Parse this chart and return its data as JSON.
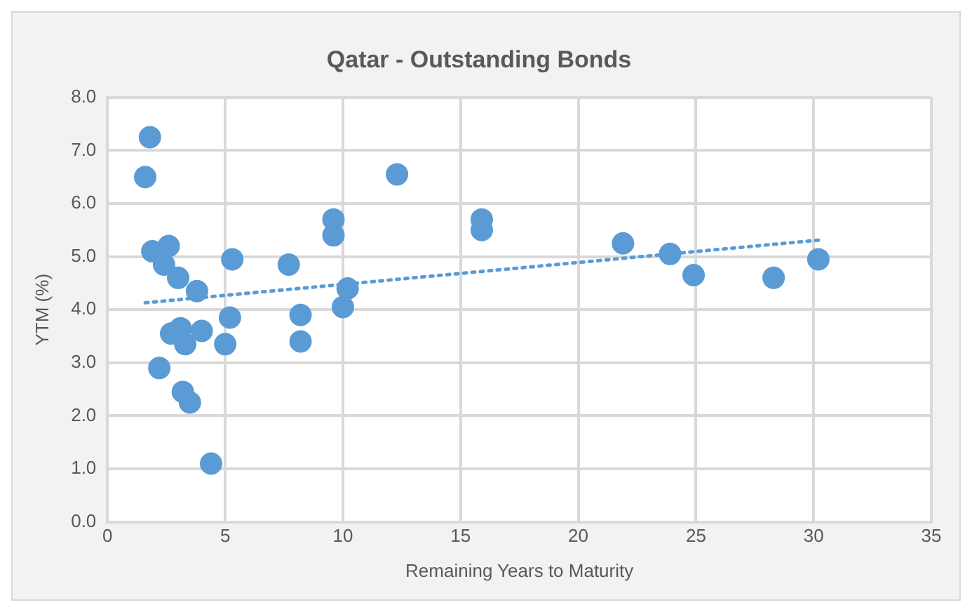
{
  "chart_data": {
    "type": "scatter",
    "title": "Qatar - Outstanding Bonds",
    "xlabel": "Remaining Years to Maturity",
    "ylabel": "YTM (%)",
    "xlim": [
      0,
      35
    ],
    "xticks": [
      0,
      5,
      10,
      15,
      20,
      25,
      30,
      35
    ],
    "ylim": [
      0,
      8
    ],
    "yticks": [
      {
        "value": 0,
        "label": "0.0"
      },
      {
        "value": 1,
        "label": "1.0"
      },
      {
        "value": 2,
        "label": "2.0"
      },
      {
        "value": 3,
        "label": "3.0"
      },
      {
        "value": 4,
        "label": "4.0"
      },
      {
        "value": 5,
        "label": "5.0"
      },
      {
        "value": 6,
        "label": "6.0"
      },
      {
        "value": 7,
        "label": "7.0"
      },
      {
        "value": 8,
        "label": "8.0"
      }
    ],
    "grid": true,
    "legend": false,
    "marker": "circle",
    "series": [
      {
        "color": "#5b9bd5",
        "x": [
          1.6,
          1.8,
          1.9,
          2.2,
          2.4,
          2.6,
          2.7,
          3.0,
          3.1,
          3.2,
          3.3,
          3.5,
          3.8,
          4.0,
          4.4,
          5.0,
          5.2,
          5.3,
          7.7,
          8.2,
          8.2,
          9.6,
          9.6,
          10.0,
          10.2,
          12.3,
          15.9,
          15.9,
          21.9,
          23.9,
          24.9,
          28.3,
          30.2
        ],
        "values": [
          6.5,
          7.25,
          5.1,
          2.9,
          4.85,
          5.2,
          3.55,
          4.6,
          3.65,
          2.45,
          3.35,
          2.25,
          4.35,
          3.6,
          1.1,
          3.35,
          3.85,
          4.95,
          4.85,
          3.9,
          3.4,
          5.7,
          5.4,
          4.05,
          4.4,
          6.55,
          5.7,
          5.5,
          5.25,
          5.05,
          4.65,
          4.6,
          4.95
        ]
      },
      {
        "type": "line",
        "color": "#5b9bd5",
        "line_style": "dotted",
        "marker": "none",
        "x": [
          1.6,
          30.2
        ],
        "values": [
          4.13,
          5.31
        ]
      }
    ]
  }
}
